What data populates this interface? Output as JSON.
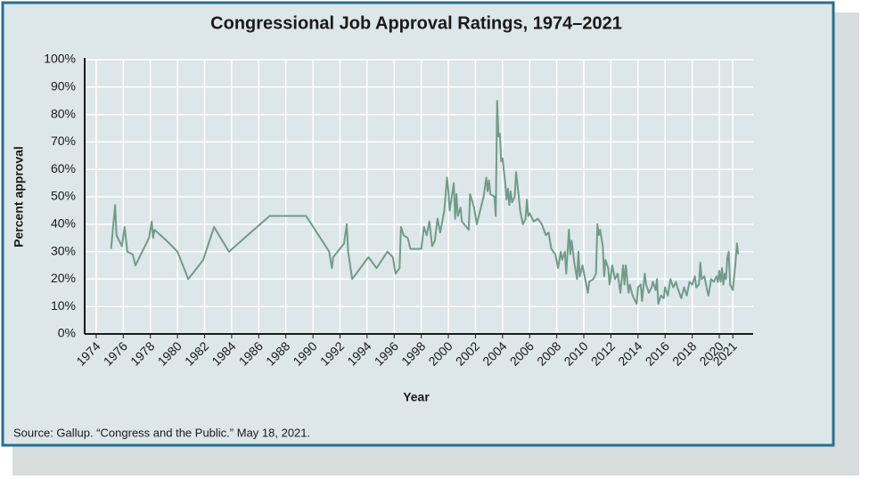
{
  "chart_data": {
    "type": "line",
    "title": "Congressional Job Approval Ratings, 1974–2021",
    "x_label": "Year",
    "y_label": "Percent approval",
    "source": "Source: Gallup. “Congress and the Public.” May 18, 2021.",
    "color": "#6f9c89",
    "grid": true,
    "xlim": [
      1973.15,
      2022.5
    ],
    "ylim": [
      0,
      100
    ],
    "xticks": [
      1974,
      1976,
      1978,
      1980,
      1982,
      1984,
      1986,
      1988,
      1990,
      1992,
      1994,
      1996,
      1998,
      2000,
      2002,
      2004,
      2006,
      2008,
      2010,
      2012,
      2014,
      2016,
      2018,
      2020,
      2021
    ],
    "yticks": [
      {
        "value": 0,
        "label": "0%"
      },
      {
        "value": 10,
        "label": "10%"
      },
      {
        "value": 20,
        "label": "20%"
      },
      {
        "value": 30,
        "label": "30%"
      },
      {
        "value": 40,
        "label": "40%"
      },
      {
        "value": 50,
        "label": "50%"
      },
      {
        "value": 60,
        "label": "60%"
      },
      {
        "value": 70,
        "label": "70%"
      },
      {
        "value": 80,
        "label": "80%"
      },
      {
        "value": 90,
        "label": "90%"
      },
      {
        "value": 100,
        "label": "100%"
      }
    ],
    "x": [
      1975.1,
      1975.4,
      1975.5,
      1975.9,
      1976.1,
      1976.3,
      1976.7,
      1976.9,
      1977.9,
      1978.1,
      1978.2,
      1978.3,
      1979.2,
      1980.0,
      1980.8,
      1981.9,
      1982.7,
      1983.8,
      1986.8,
      1989.5,
      1991.2,
      1991.4,
      1991.5,
      1992.3,
      1992.5,
      1992.6,
      1992.9,
      1994.1,
      1994.7,
      1995.5,
      1995.9,
      1996.1,
      1996.4,
      1996.5,
      1996.7,
      1997.0,
      1997.2,
      1998.0,
      1998.2,
      1998.4,
      1998.6,
      1998.8,
      1999.0,
      1999.2,
      1999.4,
      1999.7,
      1999.9,
      2000.0,
      2000.1,
      2000.4,
      2000.5,
      2000.6,
      2000.7,
      2000.9,
      2001.0,
      2001.5,
      2001.6,
      2001.9,
      2002.1,
      2002.6,
      2002.8,
      2002.9,
      2003.0,
      2003.1,
      2003.4,
      2003.5,
      2003.6,
      2003.7,
      2003.8,
      2003.9,
      2004.0,
      2004.2,
      2004.3,
      2004.4,
      2004.5,
      2004.6,
      2004.7,
      2004.9,
      2005.0,
      2005.2,
      2005.3,
      2005.5,
      2005.7,
      2005.8,
      2005.9,
      2006.0,
      2006.3,
      2006.6,
      2006.9,
      2007.2,
      2007.4,
      2007.6,
      2007.9,
      2008.1,
      2008.3,
      2008.4,
      2008.6,
      2008.7,
      2008.9,
      2009.0,
      2009.1,
      2009.3,
      2009.5,
      2009.6,
      2009.7,
      2009.9,
      2010.1,
      2010.3,
      2010.4,
      2010.7,
      2010.9,
      2011.0,
      2011.1,
      2011.2,
      2011.4,
      2011.5,
      2011.6,
      2011.8,
      2011.9,
      2012.1,
      2012.3,
      2012.5,
      2012.7,
      2012.9,
      2013.0,
      2013.1,
      2013.3,
      2013.4,
      2013.6,
      2013.9,
      2014.0,
      2014.2,
      2014.3,
      2014.5,
      2014.6,
      2014.8,
      2015.0,
      2015.1,
      2015.3,
      2015.4,
      2015.5,
      2015.7,
      2015.9,
      2016.0,
      2016.2,
      2016.4,
      2016.6,
      2016.8,
      2016.9,
      2017.2,
      2017.4,
      2017.6,
      2017.8,
      2018.0,
      2018.2,
      2018.3,
      2018.5,
      2018.6,
      2018.7,
      2018.9,
      2019.1,
      2019.2,
      2019.4,
      2019.6,
      2019.8,
      2019.9,
      2020.0,
      2020.1,
      2020.2,
      2020.3,
      2020.4,
      2020.5,
      2020.6,
      2020.7,
      2020.8,
      2021.0,
      2021.2,
      2021.3,
      2021.4
    ],
    "values": [
      31,
      47,
      36,
      32,
      39,
      30,
      29,
      25,
      35,
      41,
      35,
      38,
      34,
      30,
      20,
      27,
      39,
      30,
      43,
      43,
      30,
      24,
      28,
      33,
      40,
      30,
      20,
      28,
      24,
      30,
      28,
      22,
      24,
      39,
      36,
      35,
      31,
      31,
      39,
      36,
      41,
      32,
      34,
      42,
      37,
      45,
      57,
      52,
      45,
      55,
      42,
      51,
      43,
      46,
      41,
      38,
      51,
      46,
      40,
      50,
      57,
      52,
      56,
      51,
      50,
      43,
      85,
      72,
      73,
      63,
      64,
      55,
      49,
      53,
      47,
      52,
      48,
      50,
      59,
      50,
      45,
      40,
      42,
      49,
      43,
      44,
      41,
      42,
      40,
      36,
      37,
      31,
      29,
      24,
      30,
      27,
      30,
      22,
      38,
      29,
      34,
      26,
      20,
      30,
      21,
      25,
      20,
      15,
      19,
      20,
      22,
      40,
      36,
      38,
      32,
      21,
      27,
      24,
      18,
      25,
      20,
      22,
      15,
      25,
      18,
      25,
      15,
      18,
      14,
      11,
      17,
      18,
      12,
      22,
      18,
      15,
      17,
      19,
      16,
      20,
      11,
      14,
      13,
      17,
      14,
      20,
      17,
      19,
      17,
      13,
      17,
      14,
      19,
      18,
      21,
      17,
      18,
      26,
      20,
      21,
      16,
      14,
      20,
      19,
      21,
      19,
      23,
      19,
      24,
      18,
      22,
      20,
      28,
      30,
      18,
      16,
      26,
      33,
      29
    ]
  }
}
